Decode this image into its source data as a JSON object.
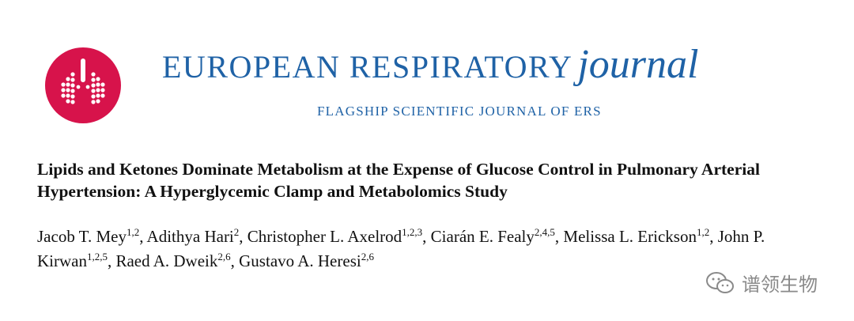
{
  "header": {
    "journal_name": "EUROPEAN RESPIRATORY",
    "journal_word": "journal",
    "tagline": "FLAGSHIP SCIENTIFIC JOURNAL OF ERS"
  },
  "article": {
    "title": "Lipids and Ketones Dominate Metabolism at the Expense of Glucose Control in Pulmonary Arterial Hypertension: A Hyperglycemic Clamp and Metabolomics Study",
    "authors": [
      {
        "name": "Jacob T. Mey",
        "affiliations": "1,2",
        "separator": ","
      },
      {
        "name": "Adithya Hari",
        "affiliations": "2",
        "separator": ","
      },
      {
        "name": "Christopher L. Axelrod",
        "affiliations": "1,2,3",
        "separator": ","
      },
      {
        "name": "Ciarán E. Fealy",
        "affiliations": "2,4,5",
        "separator": ","
      },
      {
        "name": "Melissa L. Erickson",
        "affiliations": "1,2",
        "separator": ","
      },
      {
        "name": "John P. Kirwan",
        "affiliations": "1,2,5",
        "separator": ","
      },
      {
        "name": "Raed A. Dweik",
        "affiliations": "2,6",
        "separator": ","
      },
      {
        "name": "Gustavo A. Heresi",
        "affiliations": "2,6"
      }
    ]
  },
  "watermark": {
    "text": "谱领生物"
  }
}
